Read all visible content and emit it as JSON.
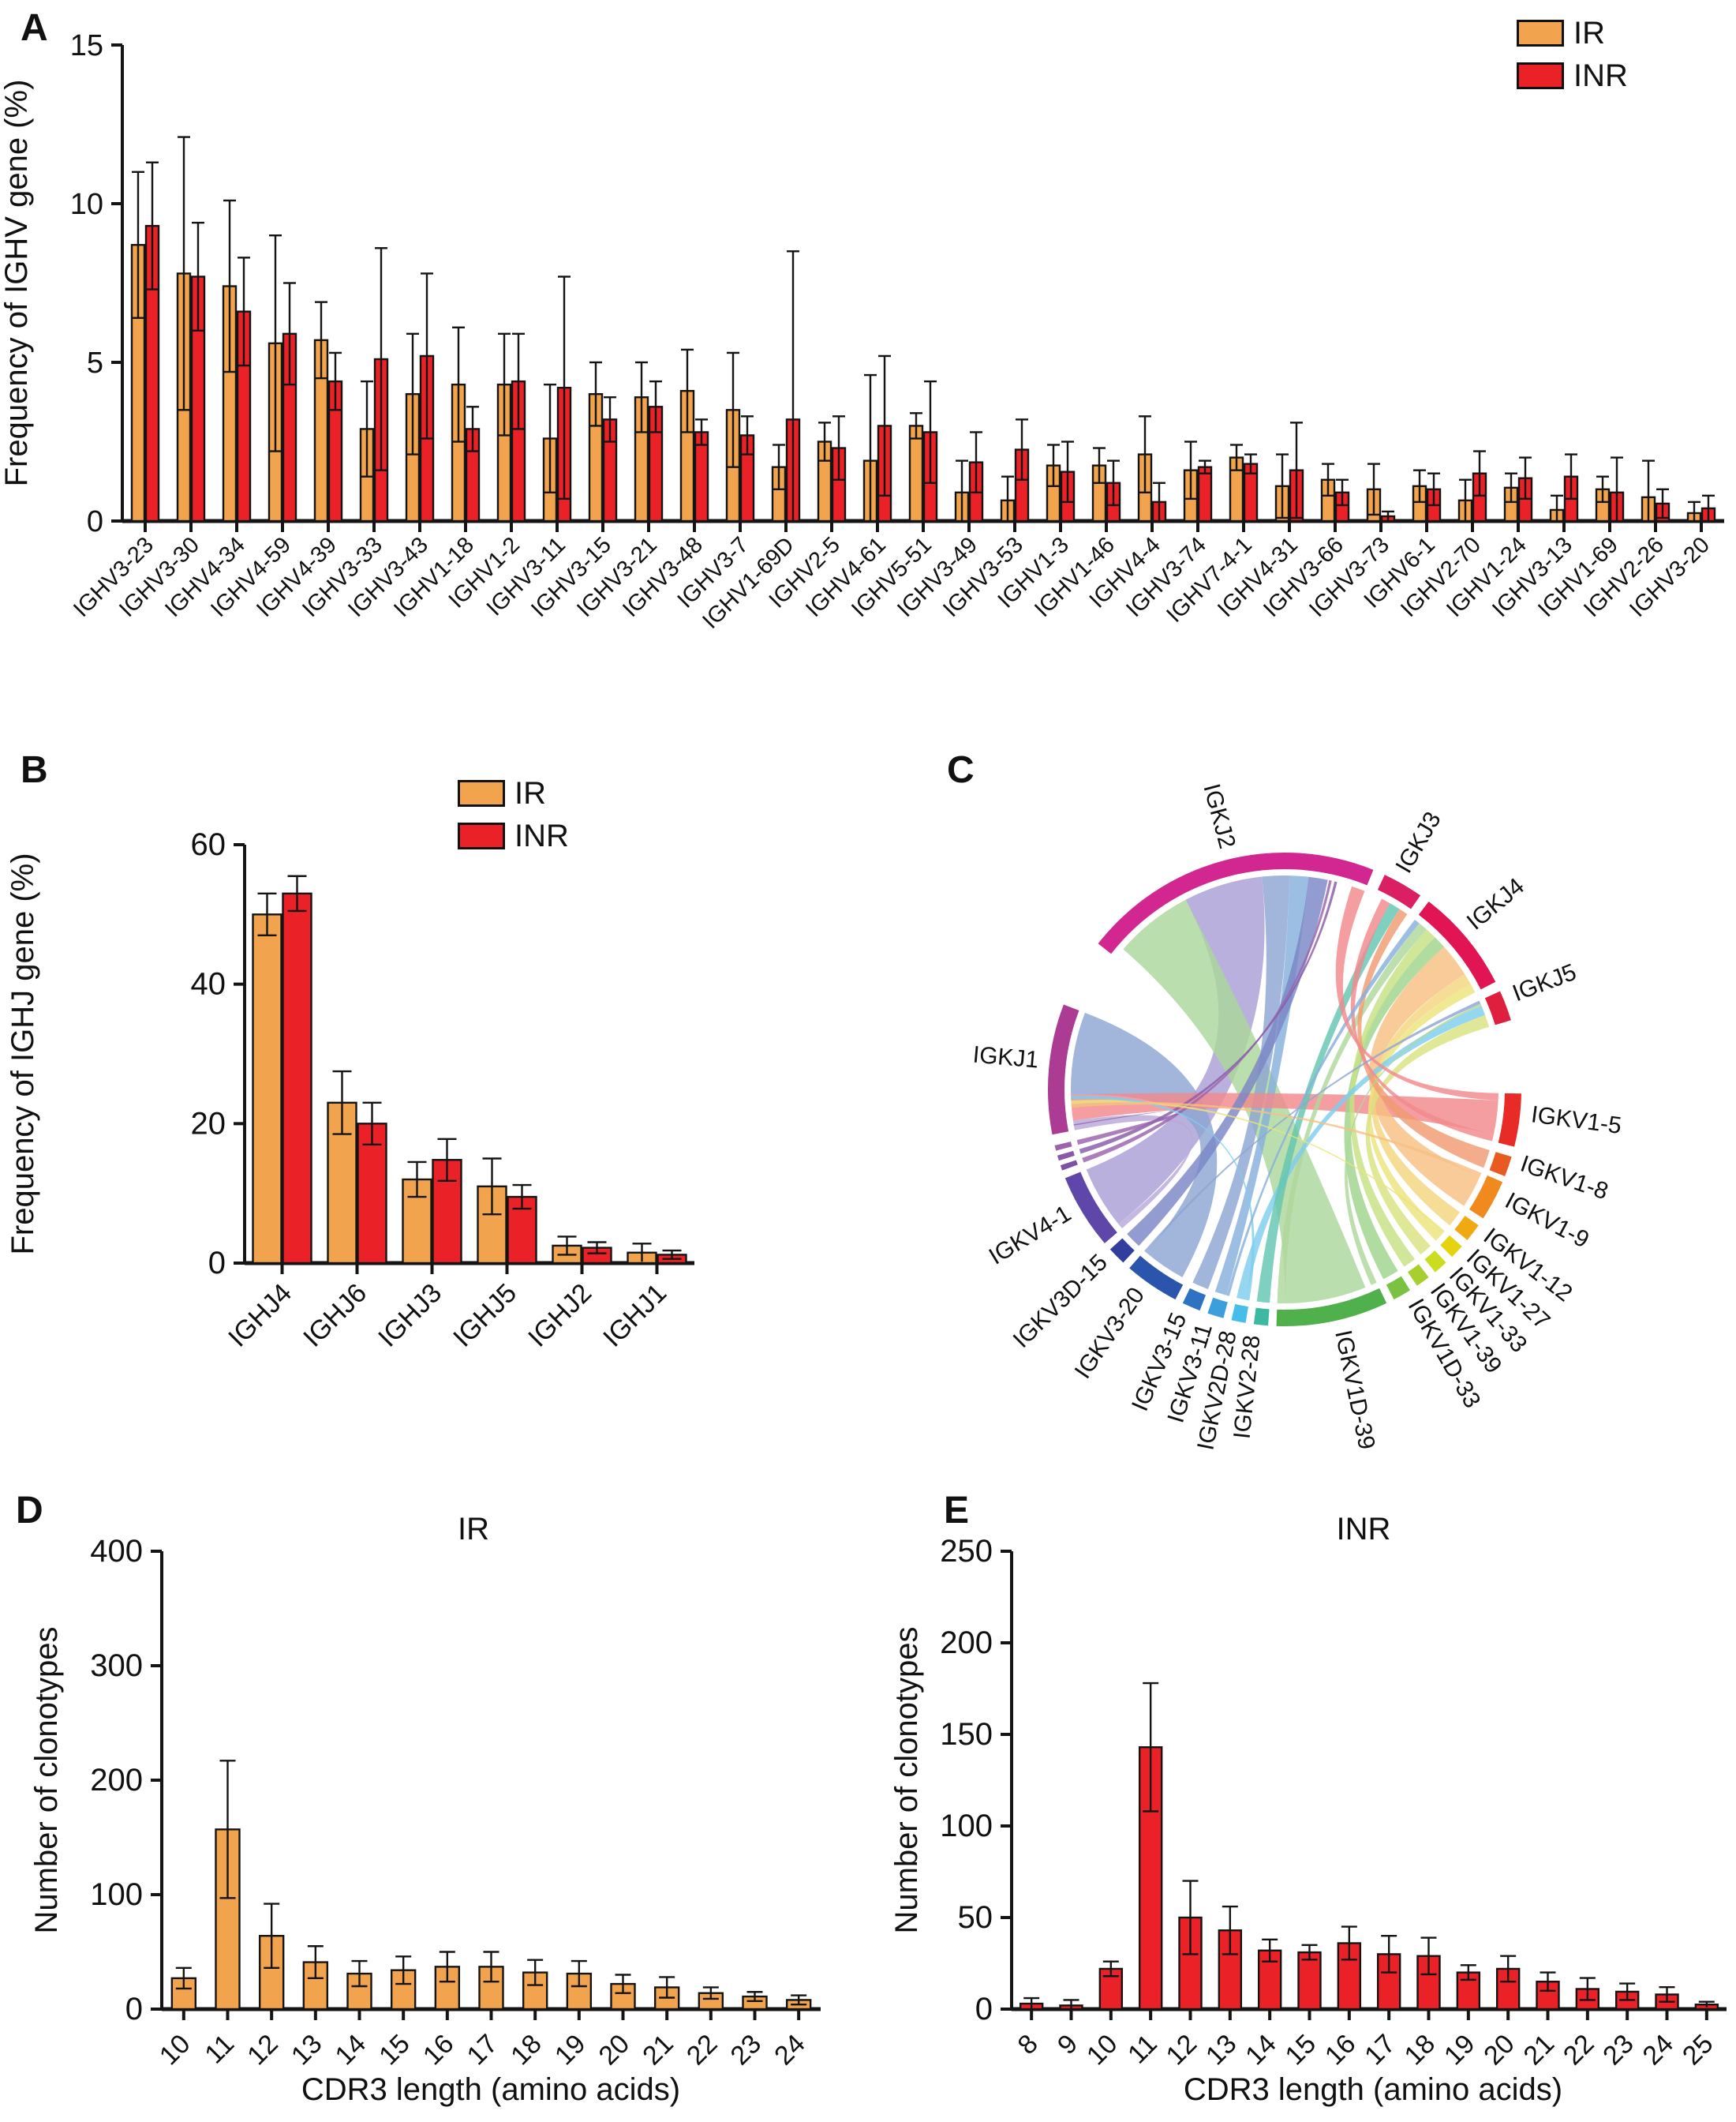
{
  "panels": {
    "a_letter": "A",
    "b_letter": "B",
    "c_letter": "C",
    "d_letter": "D",
    "e_letter": "E"
  },
  "legend": {
    "ir_label": "IR",
    "inr_label": "INR"
  },
  "colors": {
    "ir": "#F2A34E",
    "inr": "#EA2127",
    "bar_stroke": "#141414",
    "axis": "#141414",
    "text": "#111111"
  },
  "chart_data": [
    {
      "id": "A",
      "type": "bar",
      "title": "",
      "ylabel": "Frequency of IGHV gene (%)",
      "xlabel": "",
      "ylim": [
        0,
        15
      ],
      "yticks": [
        0,
        5,
        10,
        15
      ],
      "grid": false,
      "legend_position": "top-right",
      "categories": [
        "IGHV3-23",
        "IGHV3-30",
        "IGHV4-34",
        "IGHV4-59",
        "IGHV4-39",
        "IGHV3-33",
        "IGHV3-43",
        "IGHV1-18",
        "IGHV1-2",
        "IGHV3-11",
        "IGHV3-15",
        "IGHV3-21",
        "IGHV3-48",
        "IGHV3-7",
        "IGHV1-69D",
        "IGHV2-5",
        "IGHV4-61",
        "IGHV5-51",
        "IGHV3-49",
        "IGHV3-53",
        "IGHV1-3",
        "IGHV1-46",
        "IGHV4-4",
        "IGHV3-74",
        "IGHV7-4-1",
        "IGHV4-31",
        "IGHV3-66",
        "IGHV3-73",
        "IGHV6-1",
        "IGHV2-70",
        "IGHV1-24",
        "IGHV3-13",
        "IGHV1-69",
        "IGHV2-26",
        "IGHV3-20"
      ],
      "series": [
        {
          "name": "IR",
          "values": [
            8.7,
            7.8,
            7.4,
            5.6,
            5.7,
            2.9,
            4.0,
            4.3,
            4.3,
            2.6,
            4.0,
            3.9,
            4.1,
            3.5,
            1.7,
            2.5,
            1.9,
            3.0,
            0.9,
            0.65,
            1.75,
            1.75,
            2.1,
            1.6,
            2.0,
            1.1,
            1.3,
            1.0,
            1.1,
            0.65,
            1.05,
            0.35,
            1.0,
            0.75,
            0.25
          ],
          "err": [
            2.3,
            4.3,
            2.7,
            3.4,
            1.2,
            1.5,
            1.9,
            1.8,
            1.6,
            1.7,
            1.0,
            1.1,
            1.3,
            1.8,
            0.7,
            0.6,
            2.7,
            0.4,
            1.0,
            0.75,
            0.65,
            0.55,
            1.2,
            0.9,
            0.4,
            1.0,
            0.5,
            0.8,
            0.5,
            0.65,
            0.45,
            0.45,
            0.4,
            1.15,
            0.35
          ]
        },
        {
          "name": "INR",
          "values": [
            9.3,
            7.7,
            6.6,
            5.9,
            4.4,
            5.1,
            5.2,
            2.9,
            4.4,
            4.2,
            3.2,
            3.6,
            2.8,
            2.7,
            3.2,
            2.3,
            3.0,
            2.8,
            1.85,
            2.25,
            1.55,
            1.2,
            0.6,
            1.7,
            1.8,
            1.6,
            0.9,
            0.15,
            1.0,
            1.5,
            1.35,
            1.4,
            0.9,
            0.55,
            0.4
          ],
          "err": [
            2.0,
            1.7,
            1.7,
            1.6,
            0.9,
            3.5,
            2.6,
            0.7,
            1.5,
            3.5,
            0.7,
            0.8,
            0.4,
            0.6,
            5.3,
            1.0,
            2.2,
            1.6,
            0.95,
            0.95,
            0.95,
            0.7,
            0.6,
            0.2,
            0.3,
            1.5,
            0.4,
            0.15,
            0.5,
            0.7,
            0.65,
            0.7,
            1.1,
            0.45,
            0.4
          ]
        }
      ]
    },
    {
      "id": "B",
      "type": "bar",
      "title": "",
      "ylabel": "Frequency of IGHJ gene (%)",
      "xlabel": "",
      "ylim": [
        0,
        60
      ],
      "yticks": [
        0,
        20,
        40,
        60
      ],
      "grid": false,
      "legend_position": "top-right",
      "categories": [
        "IGHJ4",
        "IGHJ6",
        "IGHJ3",
        "IGHJ5",
        "IGHJ2",
        "IGHJ1"
      ],
      "series": [
        {
          "name": "IR",
          "values": [
            50,
            23,
            12,
            11,
            2.5,
            1.5
          ],
          "err": [
            3,
            4.5,
            2.5,
            4,
            1.3,
            1.3
          ]
        },
        {
          "name": "INR",
          "values": [
            53,
            20,
            14.8,
            9.5,
            2.2,
            1.2
          ],
          "err": [
            2.5,
            3,
            3,
            1.7,
            0.8,
            0.6
          ]
        }
      ]
    },
    {
      "id": "C",
      "type": "chord",
      "title": "",
      "segments": [
        {
          "name": "IGKJ2",
          "label": "IGKJ2",
          "color": "#D22790",
          "a0": -52,
          "a1": 22
        },
        {
          "name": "IGKJ3",
          "label": "IGKJ3",
          "color": "#DB1F63",
          "a0": 25,
          "a1": 35
        },
        {
          "name": "IGKJ4",
          "label": "IGKJ4",
          "color": "#E11454",
          "a0": 37.5,
          "a1": 63
        },
        {
          "name": "IGKJ5",
          "label": "IGKJ5",
          "color": "#DE1F3E",
          "a0": 65.5,
          "a1": 73
        },
        {
          "name": "IGKV1-5",
          "label": "IGKV1-5",
          "color": "#E92B28",
          "a0": 91,
          "a1": 104
        },
        {
          "name": "IGKV1-8",
          "label": "IGKV1-8",
          "color": "#E85A20",
          "a0": 106.5,
          "a1": 111.5
        },
        {
          "name": "IGKV1-9",
          "label": "IGKV1-9",
          "color": "#F08A1E",
          "a0": 113,
          "a1": 123
        },
        {
          "name": "IGKV1-12",
          "label": "IGKV1-12",
          "color": "#EFA912",
          "a0": 125,
          "a1": 129.5
        },
        {
          "name": "IGKV1-27",
          "label": "IGKV1-27",
          "color": "#E6D310",
          "a0": 131.5,
          "a1": 135
        },
        {
          "name": "IGKV1-33",
          "label": "IGKV1-33",
          "color": "#CBDD21",
          "a0": 137,
          "a1": 140.5
        },
        {
          "name": "IGKV1-39",
          "label": "IGKV1-39",
          "color": "#A8CF30",
          "a0": 142.5,
          "a1": 146
        },
        {
          "name": "IGKV1D-33",
          "label": "IGKV1D-33",
          "color": "#7CC242",
          "a0": 148,
          "a1": 152.5
        },
        {
          "name": "IGKV1D-39",
          "label": "IGKV1D-39",
          "color": "#4FB04C",
          "a0": 154.5,
          "a1": 182
        },
        {
          "name": "IGKV2-28",
          "label": "IGKV2-28",
          "color": "#3BB9A1",
          "a0": 184,
          "a1": 187.5
        },
        {
          "name": "IGKV2D-28",
          "label": "IGKV2D-28",
          "color": "#47BEE9",
          "a0": 189.5,
          "a1": 193
        },
        {
          "name": "IGKV3-11",
          "label": "IGKV3-11",
          "color": "#3C9EDD",
          "a0": 195,
          "a1": 199
        },
        {
          "name": "IGKV3-15",
          "label": "IGKV3-15",
          "color": "#2E72C1",
          "a0": 201,
          "a1": 205.5
        },
        {
          "name": "IGKV3-20",
          "label": "IGKV3-20",
          "color": "#2B54AD",
          "a0": 207.5,
          "a1": 221
        },
        {
          "name": "IGKV3D-15",
          "label": "IGKV3D-15",
          "color": "#323E9D",
          "a0": 223,
          "a1": 227.5
        },
        {
          "name": "IGKV4-1",
          "label": "IGKV4-1",
          "color": "#5F47A9",
          "a0": 229.5,
          "a1": 248
        },
        {
          "name": "IGKV-s1",
          "label": "",
          "color": "#7B52A5",
          "a0": 250,
          "a1": 251.3
        },
        {
          "name": "IGKV-s2",
          "label": "",
          "color": "#8A5AA8",
          "a0": 252.5,
          "a1": 253.8
        },
        {
          "name": "IGKV-s3",
          "label": "",
          "color": "#9A63AC",
          "a0": 255,
          "a1": 256.3
        },
        {
          "name": "IGKJ1",
          "label": "IGKJ1",
          "color": "#AC3B93",
          "a0": 259,
          "a1": 291
        }
      ],
      "ribbons": [
        [
          "IGKV4-1",
          0.08,
          1,
          "IGKJ2",
          0.33,
          0.62,
          "#ab9fd6"
        ],
        [
          "IGKV1D-39",
          0.12,
          0.92,
          "IGKJ2",
          0.04,
          0.33,
          "#abd79b"
        ],
        [
          "IGKV3-20",
          0.08,
          0.95,
          "IGKJ1",
          0.3,
          1,
          "#8da5d2"
        ],
        [
          "IGKV3-15",
          0,
          1,
          "IGKJ2",
          0.62,
          0.72,
          "#8da5d2"
        ],
        [
          "IGKV3-11",
          0.2,
          1,
          "IGKJ2",
          0.72,
          0.79,
          "#85b0dc"
        ],
        [
          "IGKV1-5",
          0.15,
          0.85,
          "IGKJ1",
          0.08,
          0.3,
          "#f2898c"
        ],
        [
          "IGKV1-9",
          0.1,
          1,
          "IGKJ4",
          0.42,
          0.78,
          "#f7c083"
        ],
        [
          "IGKV1-12",
          0,
          1,
          "IGKJ4",
          0.78,
          0.9,
          "#f4d67e"
        ],
        [
          "IGKV1-27",
          0.15,
          1,
          "IGKJ4",
          0.9,
          1,
          "#ece47b"
        ],
        [
          "IGKV1D-33",
          0,
          1,
          "IGKJ4",
          0.28,
          0.42,
          "#9fd48c"
        ],
        [
          "IGKV1-39",
          0,
          1,
          "IGKJ4",
          0.16,
          0.28,
          "#c6e284"
        ],
        [
          "IGKV1D-39",
          0.92,
          1,
          "IGKJ4",
          0.06,
          0.16,
          "#aed79b"
        ],
        [
          "IGKV1-33",
          0,
          1,
          "IGKJ5",
          0.55,
          1,
          "#d9e380"
        ],
        [
          "IGKV2D-28",
          0.25,
          1,
          "IGKJ5",
          0.2,
          0.55,
          "#7ecdee"
        ],
        [
          "IGKV2-28",
          0,
          1,
          "IGKJ3",
          0.45,
          0.75,
          "#63c6b0"
        ],
        [
          "IGKV1-8",
          0,
          1,
          "IGKJ3",
          0.75,
          1,
          "#f09b70"
        ],
        [
          "IGKV1-5",
          0.85,
          1,
          "IGKJ3",
          0.2,
          0.45,
          "#f2898c"
        ],
        [
          "IGKV3D-15",
          0,
          1,
          "IGKJ2",
          0.79,
          0.86,
          "#7a86c6"
        ],
        [
          "IGKV4-1",
          0,
          0.08,
          "IGKJ1",
          0,
          0.08,
          "#b7a8da"
        ],
        [
          "IGKV3-20",
          0.95,
          1,
          "IGKJ5",
          0,
          0.12,
          "#8da5d2"
        ],
        [
          "IGKV1D-39",
          0,
          0.06,
          "IGKJ5",
          0.12,
          0.2,
          "#aed79b"
        ],
        [
          "IGKV-s1",
          0,
          1,
          "IGKJ2",
          0.865,
          0.875,
          "#9a63ac"
        ],
        [
          "IGKV-s2",
          0,
          1,
          "IGKJ2",
          0.885,
          0.895,
          "#8a5aa8"
        ],
        [
          "IGKV-s3",
          0,
          1,
          "IGKJ1",
          0.04,
          0.05,
          "#9a63ac"
        ],
        [
          "IGKV1-27",
          0,
          0.15,
          "IGKJ1",
          0.22,
          0.25,
          "#ece47b"
        ],
        [
          "IGKV2D-28",
          0,
          0.25,
          "IGKJ1",
          0.26,
          0.29,
          "#7ecdee"
        ],
        [
          "IGKV1-9",
          0,
          0.1,
          "IGKJ1",
          0.19,
          0.22,
          "#f7c083"
        ],
        [
          "IGKV3-11",
          0,
          0.2,
          "IGKJ4",
          0,
          0.06,
          "#85b0dc"
        ],
        [
          "IGKV1-5",
          0,
          0.15,
          "IGKJ2",
          0.95,
          1,
          "#f2898c"
        ]
      ]
    },
    {
      "id": "D",
      "type": "bar",
      "title": "IR",
      "ylabel": "Number of clonotypes",
      "xlabel": "CDR3 length (amino acids)",
      "ylim": [
        0,
        400
      ],
      "yticks": [
        0,
        100,
        200,
        300,
        400
      ],
      "grid": false,
      "categories": [
        "10",
        "11",
        "12",
        "13",
        "14",
        "15",
        "16",
        "17",
        "18",
        "19",
        "20",
        "21",
        "22",
        "23",
        "24"
      ],
      "series": [
        {
          "name": "IR",
          "values": [
            27,
            157,
            64,
            41,
            31,
            34,
            37,
            37,
            32,
            31,
            22,
            19,
            14,
            11,
            8
          ],
          "err": [
            9,
            60,
            28,
            14,
            11,
            12,
            13,
            13,
            11,
            11,
            8,
            9,
            5,
            4,
            4
          ]
        }
      ]
    },
    {
      "id": "E",
      "type": "bar",
      "title": "INR",
      "ylabel": "Number of clonotypes",
      "xlabel": "CDR3 length (amino acids)",
      "ylim": [
        0,
        250
      ],
      "yticks": [
        0,
        50,
        100,
        150,
        200,
        250
      ],
      "grid": false,
      "categories": [
        "8",
        "9",
        "10",
        "11",
        "12",
        "13",
        "14",
        "15",
        "16",
        "17",
        "18",
        "19",
        "20",
        "21",
        "22",
        "23",
        "24",
        "25"
      ],
      "series": [
        {
          "name": "INR",
          "values": [
            3,
            2,
            22,
            143,
            50,
            43,
            32,
            31,
            36,
            30,
            29,
            20,
            22,
            15,
            11,
            9.5,
            8,
            2.5
          ],
          "err": [
            3,
            3,
            4,
            35,
            20,
            13,
            6,
            4,
            9,
            10,
            10,
            4,
            7,
            5,
            6,
            4.5,
            4,
            1.5
          ]
        }
      ]
    }
  ]
}
